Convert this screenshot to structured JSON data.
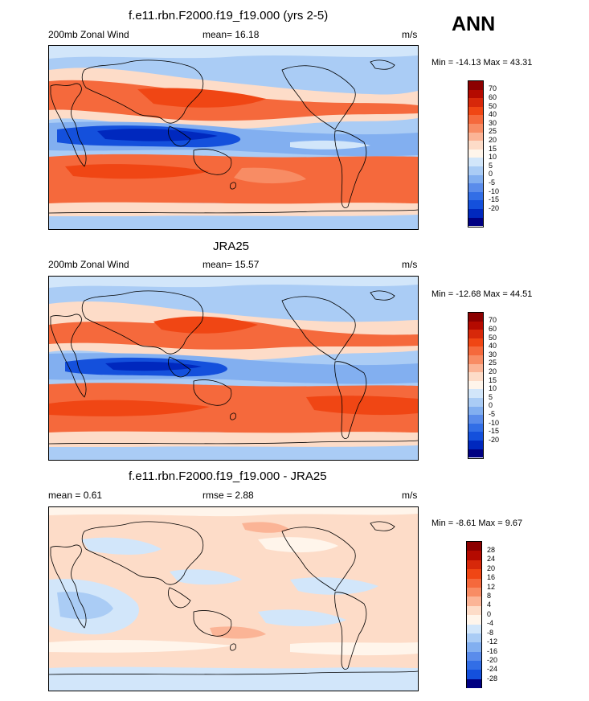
{
  "season": "ANN",
  "panels": [
    {
      "title": "f.e11.rbn.F2000.f19_f19.000 (yrs 2-5)",
      "left": "200mb Zonal Wind",
      "center": "mean=  16.18",
      "units": "m/s",
      "minmax": "Min = -14.13 Max =  43.31",
      "colorbar": {
        "labels": [
          "70",
          "60",
          "50",
          "40",
          "30",
          "25",
          "20",
          "15",
          "10",
          "5",
          "0",
          "-5",
          "-10",
          "-15",
          "-20"
        ],
        "colors": [
          "#8c0000",
          "#b40a00",
          "#d7280a",
          "#f04614",
          "#f5693c",
          "#f88c64",
          "#fbb496",
          "#fddcc8",
          "#fff5eb",
          "#d2e6fa",
          "#aaccf5",
          "#82aff0",
          "#5a8ceb",
          "#326ee6",
          "#1450dc",
          "#0028be",
          "#000082"
        ]
      }
    },
    {
      "title": "JRA25",
      "left": "200mb Zonal Wind",
      "center": "mean=  15.57",
      "units": "m/s",
      "minmax": "Min = -12.68 Max =  44.51",
      "colorbar": {
        "labels": [
          "70",
          "60",
          "50",
          "40",
          "30",
          "25",
          "20",
          "15",
          "10",
          "5",
          "0",
          "-5",
          "-10",
          "-15",
          "-20"
        ],
        "colors": [
          "#8c0000",
          "#b40a00",
          "#d7280a",
          "#f04614",
          "#f5693c",
          "#f88c64",
          "#fbb496",
          "#fddcc8",
          "#fff5eb",
          "#d2e6fa",
          "#aaccf5",
          "#82aff0",
          "#5a8ceb",
          "#326ee6",
          "#1450dc",
          "#0028be",
          "#000082"
        ]
      }
    },
    {
      "title": "f.e11.rbn.F2000.f19_f19.000 - JRA25",
      "left": "mean =   0.61",
      "center": "rmse =   2.88",
      "units": "m/s",
      "minmax": "Min =  -8.61 Max =   9.67",
      "colorbar": {
        "labels": [
          "28",
          "24",
          "20",
          "16",
          "12",
          "8",
          "4",
          "0",
          "-4",
          "-8",
          "-12",
          "-16",
          "-20",
          "-24",
          "-28"
        ],
        "colors": [
          "#8c0000",
          "#b40a00",
          "#d7280a",
          "#f04614",
          "#f5693c",
          "#f88c64",
          "#fbb496",
          "#fddcc8",
          "#fff5eb",
          "#d2e6fa",
          "#aaccf5",
          "#82aff0",
          "#5a8ceb",
          "#326ee6",
          "#1450dc",
          "#0028be",
          "#000082"
        ]
      }
    }
  ]
}
